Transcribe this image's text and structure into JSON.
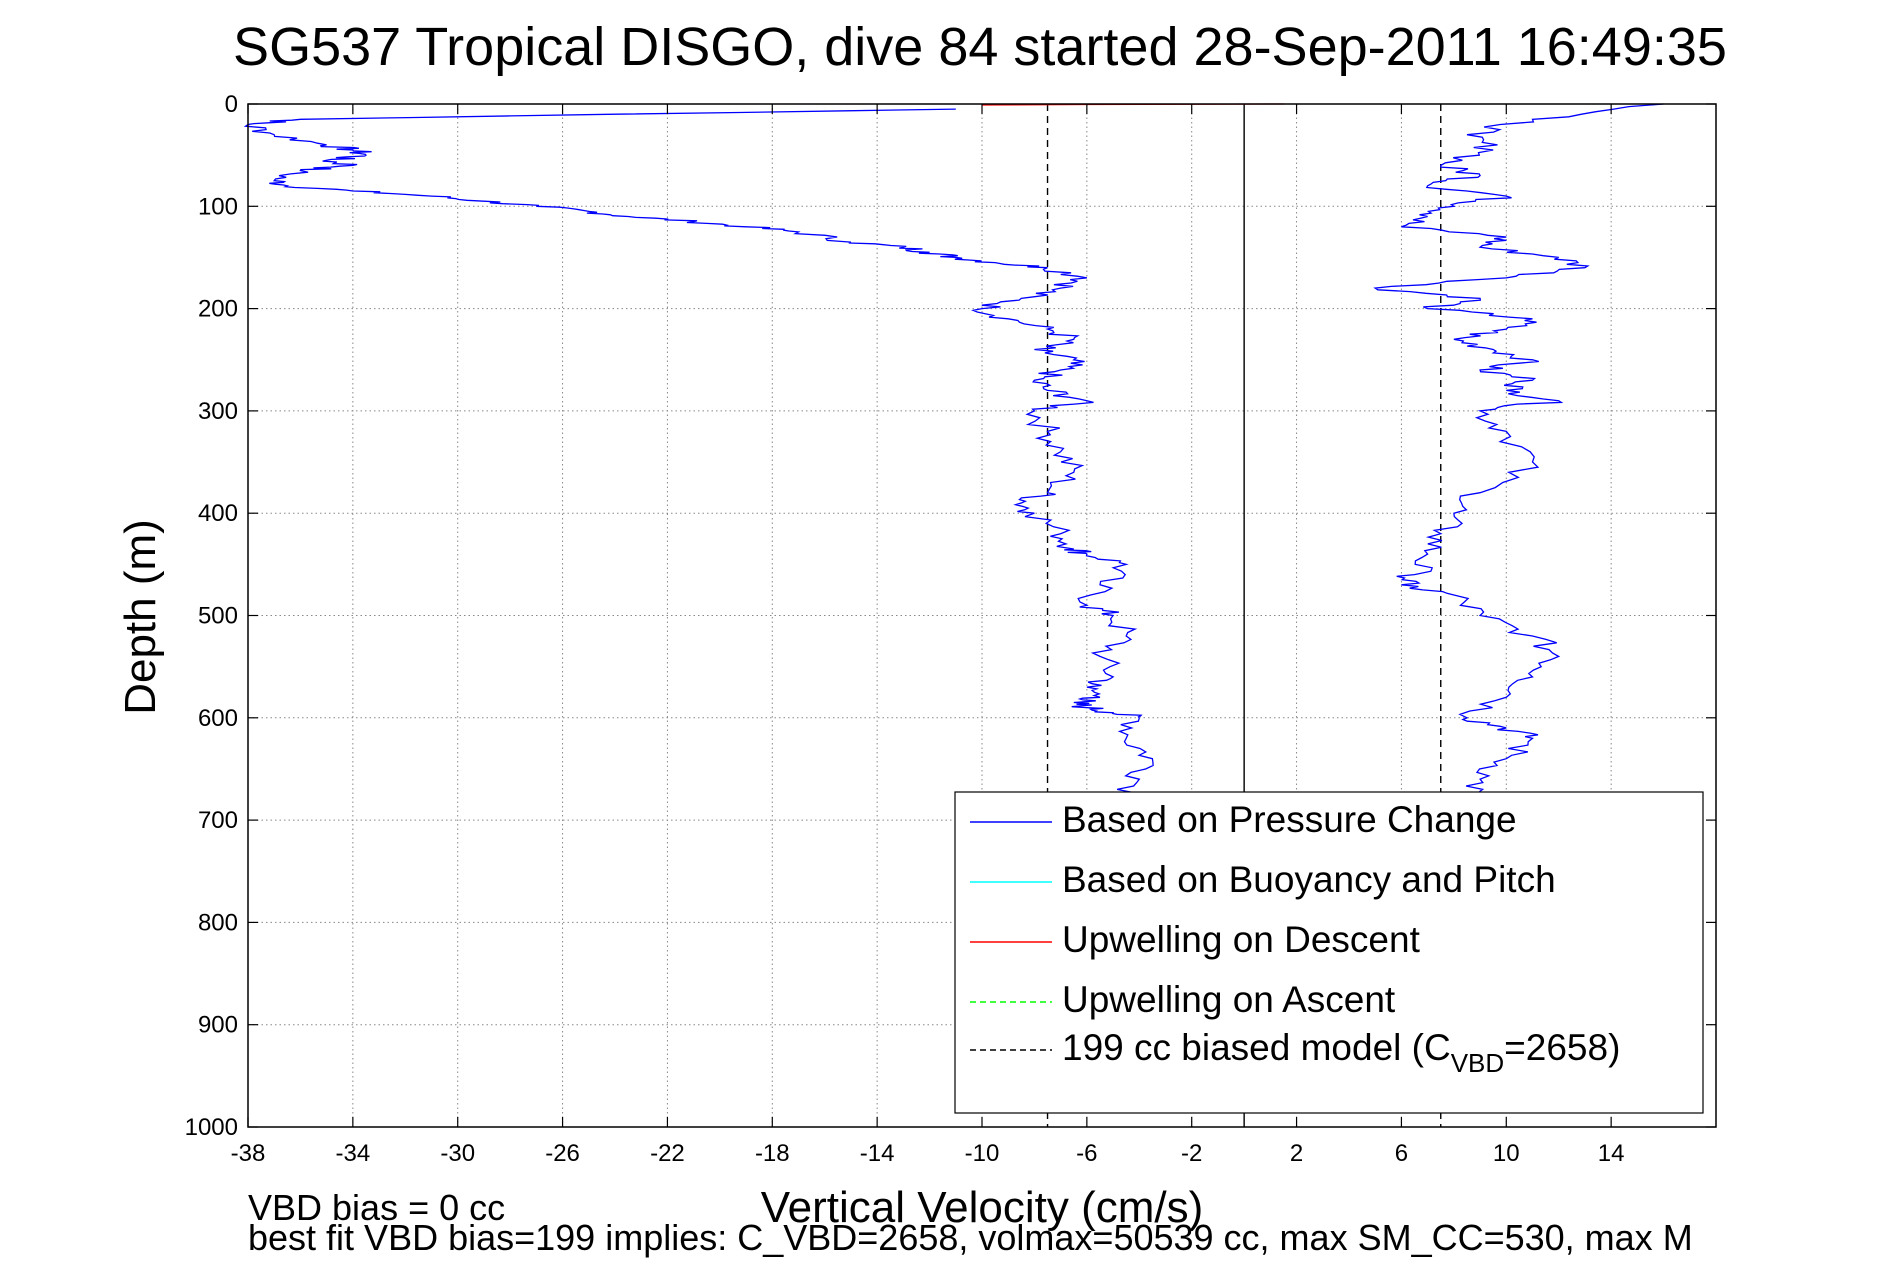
{
  "chart_data": {
    "type": "line",
    "title": "SG537 Tropical DISGO, dive 84 started 28-Sep-2011 16:49:35",
    "xlabel": "Vertical Velocity (cm/s)",
    "ylabel": "Depth (m)",
    "xlim": [
      -38,
      18
    ],
    "ylim": [
      1000,
      0
    ],
    "y_reversed": true,
    "grid": true,
    "legend_position": "bottom-right",
    "x_ticks": [
      -38,
      -34,
      -30,
      -26,
      -22,
      -18,
      -14,
      -10,
      -6,
      -2,
      2,
      6,
      10,
      14
    ],
    "x_tick_labels": [
      "-38",
      "-34",
      "-30",
      "-26",
      "-22",
      "-18",
      "-14",
      "-10",
      "-6",
      "-2",
      "2",
      "6",
      "10",
      "14"
    ],
    "y_ticks": [
      0,
      100,
      200,
      300,
      400,
      500,
      600,
      700,
      800,
      900,
      1000
    ],
    "y_tick_labels": [
      "0",
      "100",
      "200",
      "300",
      "400",
      "500",
      "600",
      "700",
      "800",
      "900",
      "1000"
    ],
    "reference_lines": [
      {
        "label": "199 cc biased model (C_VBD=2658)",
        "style": "dashed",
        "color": "#000000",
        "x": [
          -7.5,
          7.5
        ]
      },
      {
        "style": "solid",
        "color": "#000000",
        "x": [
          0
        ]
      }
    ],
    "series": [
      {
        "name": "Based on Pressure Change",
        "color": "#0000ff",
        "segment": "descent",
        "x": [
          -11,
          -36,
          -38,
          -37,
          -35,
          -34,
          -33.5,
          -35,
          -34,
          -36,
          -37,
          -36.5,
          -34,
          -31,
          -29,
          -27,
          -25,
          -23.5,
          -21,
          -19,
          -17,
          -15,
          -13,
          -12,
          -11,
          -9.5,
          -7.5,
          -6,
          -7,
          -8.5,
          -10,
          -9,
          -7.5,
          -6.5,
          -8,
          -6.5,
          -7,
          -8,
          -7.5,
          -6,
          -8,
          -7.5,
          -7,
          -6.5,
          -7.5,
          -8.5,
          -8,
          -7,
          -6.5,
          -6,
          -4.5,
          -5.5,
          -6,
          -5,
          -4.5,
          -5.5,
          -5,
          -6,
          -5.5,
          -6.5,
          -6,
          -5,
          -4,
          -4.5,
          -3.5,
          -4,
          -4.5
        ],
        "y": [
          5,
          15,
          20,
          30,
          40,
          45,
          50,
          55,
          60,
          65,
          75,
          80,
          85,
          90,
          95,
          100,
          105,
          110,
          115,
          120,
          125,
          135,
          140,
          145,
          150,
          155,
          160,
          170,
          180,
          190,
          200,
          210,
          220,
          230,
          240,
          250,
          260,
          270,
          280,
          290,
          300,
          320,
          340,
          360,
          380,
          390,
          400,
          420,
          435,
          440,
          450,
          470,
          490,
          500,
          520,
          540,
          560,
          570,
          580,
          585,
          590,
          595,
          600,
          620,
          640,
          660,
          680
        ]
      },
      {
        "name": "Based on Pressure Change",
        "color": "#0000ff",
        "segment": "ascent",
        "x": [
          16,
          11,
          8.5,
          9.5,
          7.5,
          9,
          7,
          10,
          8,
          7,
          6,
          10,
          9,
          12,
          13,
          10,
          5,
          9,
          7,
          11,
          10,
          8,
          9.5,
          11,
          9,
          11,
          10,
          12,
          9,
          10,
          11,
          9,
          8,
          7.5,
          7,
          6.5,
          6,
          8,
          9,
          11,
          12,
          11,
          10,
          8.5,
          10,
          11,
          10,
          9,
          8.5
        ],
        "y": [
          0,
          15,
          30,
          45,
          60,
          70,
          80,
          90,
          100,
          110,
          120,
          130,
          140,
          150,
          160,
          170,
          180,
          190,
          200,
          210,
          220,
          230,
          240,
          250,
          260,
          270,
          280,
          290,
          300,
          320,
          350,
          380,
          400,
          420,
          440,
          460,
          470,
          480,
          500,
          520,
          540,
          560,
          580,
          600,
          610,
          620,
          640,
          660,
          680
        ]
      },
      {
        "name": "Upwelling on Descent",
        "color": "#ff0000",
        "x": [
          -10,
          -6,
          1.5
        ],
        "y": [
          1,
          0.5,
          0
        ]
      }
    ],
    "legend": [
      {
        "label": "Based on Pressure Change",
        "color": "#0000ff",
        "style": "solid"
      },
      {
        "label": "Based on Buoyancy and Pitch",
        "color": "#00ffff",
        "style": "solid"
      },
      {
        "label": "Upwelling on Descent",
        "color": "#ff0000",
        "style": "solid"
      },
      {
        "label": "Upwelling on Ascent",
        "color": "#00ff00",
        "style": "dashed"
      },
      {
        "label_main": "199 cc biased model (C",
        "label_sub": "VBD",
        "label_tail": "=2658)",
        "color": "#000000",
        "style": "dashed"
      }
    ],
    "annotations": [
      "VBD bias = 0 cc",
      "best fit VBD bias=199 implies: C_VBD=2658, volmax=50539 cc, max SM_CC=530, max M"
    ]
  }
}
